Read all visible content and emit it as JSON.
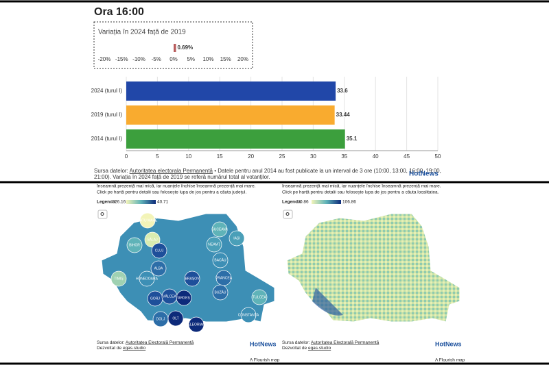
{
  "chart_data": [
    {
      "type": "bar",
      "orientation": "horizontal",
      "title": "Variația în 2024 față de 2019",
      "values": [
        0.69
      ],
      "value_labels": [
        "0.69%"
      ],
      "color": "#b85c5c",
      "xlim": [
        -20,
        20
      ],
      "xticks": [
        {
          "value": -20,
          "label": "-20%"
        },
        {
          "value": -15,
          "label": "-15%"
        },
        {
          "value": -10,
          "label": "-10%"
        },
        {
          "value": -5,
          "label": "-5%"
        },
        {
          "value": 0,
          "label": "0%"
        },
        {
          "value": 5,
          "label": "5%"
        },
        {
          "value": 10,
          "label": "10%"
        },
        {
          "value": 15,
          "label": "15%"
        },
        {
          "value": 20,
          "label": "20%"
        }
      ],
      "grid": false
    },
    {
      "type": "bar",
      "orientation": "horizontal",
      "categories": [
        "2024 (turul I)",
        "2019 (turul I)",
        "2014 (turul I)"
      ],
      "values": [
        33.6,
        33.44,
        35.1
      ],
      "colors": [
        "#2147a8",
        "#f9ab2f",
        "#3c9f3d"
      ],
      "xlim": [
        0,
        50
      ],
      "xticks": [
        0,
        5,
        10,
        15,
        20,
        25,
        30,
        35,
        40,
        45,
        50
      ],
      "grid": true
    }
  ],
  "header": {
    "title": "Ora 16:00"
  },
  "source": {
    "lead": "Sursa datelor:",
    "link": "Autoritatea electorala Permanentă",
    "line1": "• Datele pentru anul 2014 au fost publicate la un interval de 3 ore (10:00, 13:00, 16:00, 19:00,",
    "line2": "21:00). Variația în 2024 față de 2019 se referă numărul total al votanților.",
    "logo": "HotNews"
  },
  "maps": [
    {
      "intro1": "înseamnă prezență mai mică, iar nuanțele închise înseamnă prezență mai mare.",
      "intro2": "Click pe hartă pentru detalii sau folosește lupa de jos pentru a căuta județul.",
      "legend_title": "Legendă:",
      "legend_min": 26.16,
      "legend_max": 40.71,
      "labels": [
        "SATU MARE",
        "SĂLAJ",
        "BIHOR",
        "CLUJ",
        "ALBA",
        "HUNEDOARA",
        "TIMIȘ",
        "SUCEAVA",
        "NEAMȚ",
        "BACĂU",
        "BRAȘOV",
        "ARGEȘ",
        "OLT",
        "DOLJ",
        "GORJ",
        "VRANCEA",
        "BUZĂU",
        "TULCEA",
        "CONSTANȚA",
        "TELEORMAN",
        "VÂLCEA",
        "IAȘI"
      ],
      "source_lead": "Sursa datelor:",
      "source_link": "Autoritatea Electorală Permanentă",
      "dev_lead": "Dezvoltat de",
      "dev_link": "egas.studio",
      "logo": "HotNews",
      "flourish": "A Flourish map"
    },
    {
      "intro1": "înseamnă prezență mai mică, iar nuanțele închise înseamnă prezență mai mare.",
      "intro2": "Click pe hartă pentru detalii sau folosește lupa de jos pentru a căuta localitatea.",
      "legend_title": "Legendă:",
      "legend_min": 0.86,
      "legend_max": 106.86,
      "source_lead": "Sursa datelor:",
      "source_link": "Autoritatea Electorală Permanentă",
      "dev_lead": "Dezvoltat de",
      "dev_link": "egas.studio",
      "logo": "HotNews",
      "flourish": "A Flourish map"
    }
  ]
}
